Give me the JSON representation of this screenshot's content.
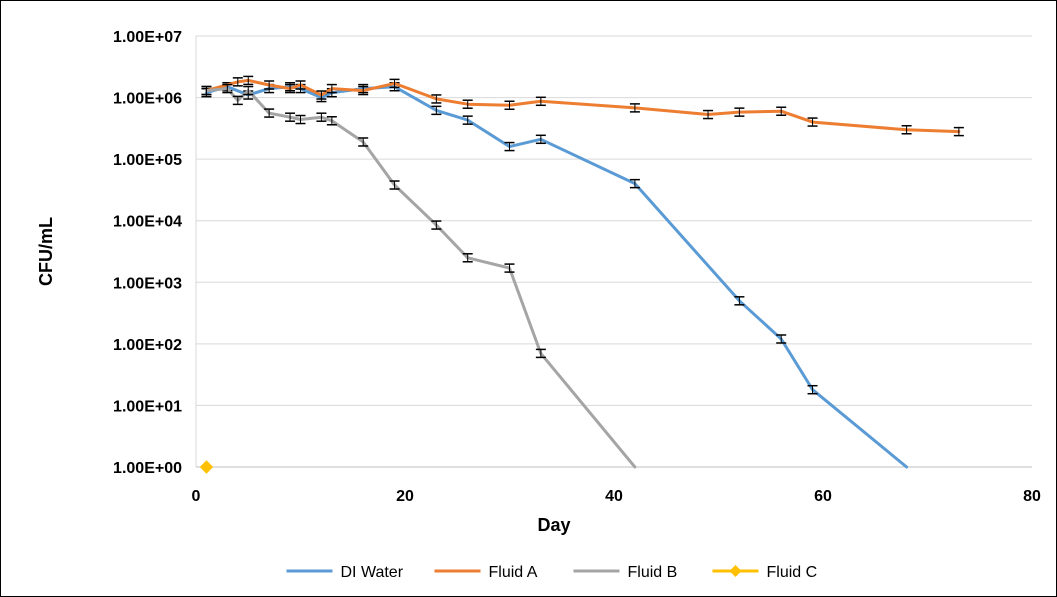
{
  "chart_data": {
    "type": "line",
    "title": "",
    "xlabel": "Day",
    "ylabel": "CFU/mL",
    "xlim": [
      0,
      80
    ],
    "xticks": [
      0,
      20,
      40,
      60,
      80
    ],
    "ylim": [
      1,
      10000000
    ],
    "yscale": "log",
    "yticks": [
      1,
      10,
      100,
      1000,
      10000,
      100000,
      1000000,
      10000000
    ],
    "ytick_labels": [
      "1.00E+00",
      "1.00E+01",
      "1.00E+02",
      "1.00E+03",
      "1.00E+04",
      "1.00E+05",
      "1.00E+06",
      "1.00E+07"
    ],
    "grid": "horizontal",
    "legend_position": "bottom",
    "series": [
      {
        "name": "DI Water",
        "color": "#5b9bd5",
        "marker": "none",
        "x": [
          1,
          3,
          5,
          7,
          9,
          10,
          12,
          13,
          16,
          19,
          23,
          26,
          30,
          33,
          42,
          52,
          56,
          59,
          68
        ],
        "y": [
          1200000,
          1500000,
          1100000,
          1400000,
          1500000,
          1400000,
          1000000,
          1200000,
          1400000,
          1500000,
          620000,
          430000,
          160000,
          210000,
          40000,
          500,
          120,
          18,
          1
        ]
      },
      {
        "name": "Fluid A",
        "color": "#ed7d31",
        "marker": "none",
        "x": [
          1,
          4,
          5,
          7,
          9,
          10,
          12,
          13,
          16,
          19,
          23,
          26,
          30,
          33,
          42,
          49,
          52,
          56,
          59,
          68,
          73
        ],
        "y": [
          1300000,
          1800000,
          1900000,
          1600000,
          1400000,
          1600000,
          1100000,
          1400000,
          1300000,
          1700000,
          950000,
          780000,
          750000,
          870000,
          680000,
          530000,
          580000,
          600000,
          400000,
          300000,
          280000
        ]
      },
      {
        "name": "Fluid B",
        "color": "#a5a5a5",
        "marker": "none",
        "x": [
          1,
          3,
          4,
          5,
          7,
          9,
          10,
          12,
          13,
          16,
          19,
          23,
          26,
          30,
          33,
          42
        ],
        "y": [
          1300000,
          1400000,
          900000,
          1300000,
          560000,
          480000,
          440000,
          480000,
          420000,
          190000,
          38000,
          8500,
          2500,
          1700,
          70,
          1
        ]
      },
      {
        "name": "Fluid C",
        "color": "#ffc000",
        "marker": "diamond",
        "x": [
          1
        ],
        "y": [
          1
        ]
      }
    ]
  }
}
